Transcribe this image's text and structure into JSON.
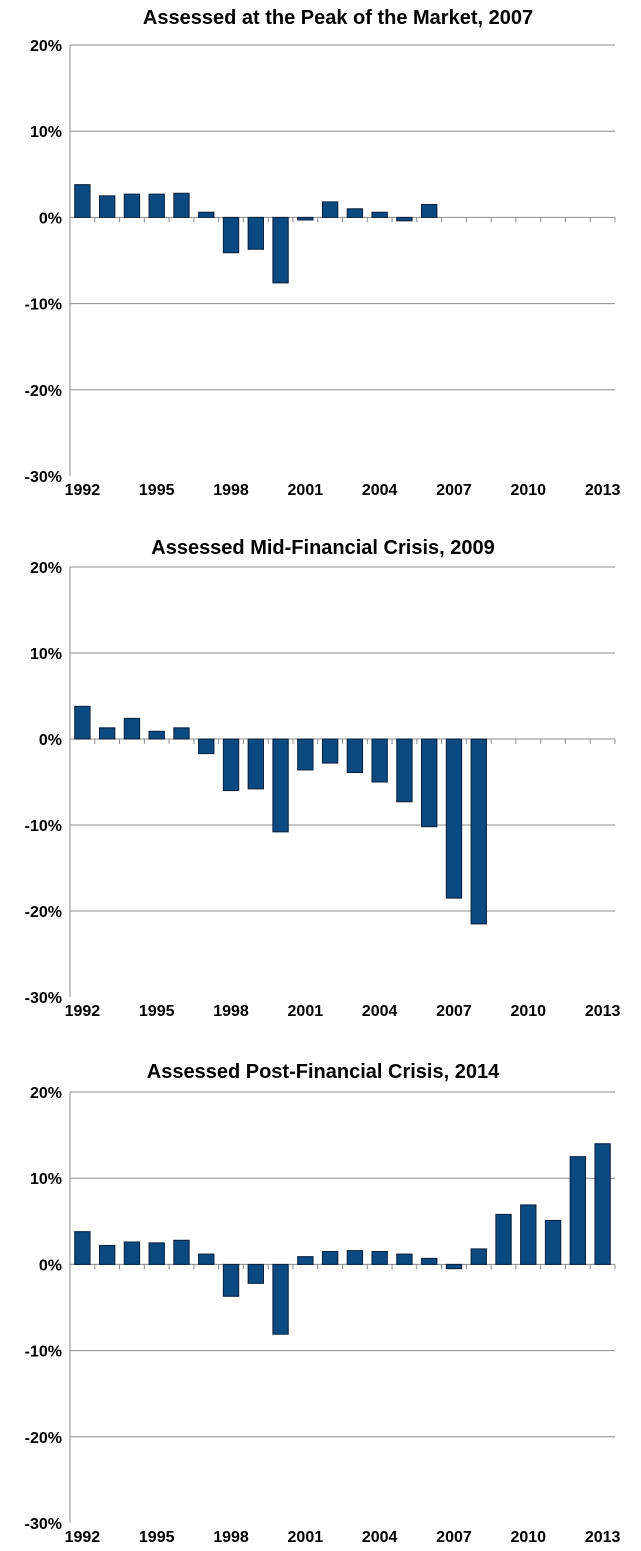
{
  "chart_data": [
    {
      "type": "bar",
      "title": "Assessed at the Peak of the Market, 2007",
      "y_tick_labels": [
        "20%",
        "10%",
        "0%",
        "-10%",
        "-20%",
        "-30%"
      ],
      "x_tick_labels": [
        "1992",
        "1995",
        "1998",
        "2001",
        "2004",
        "2007",
        "2010",
        "2013"
      ],
      "ylim": [
        -30,
        20
      ],
      "grid": true,
      "bar_color": "#0a4a80",
      "categories": [
        1992,
        1993,
        1994,
        1995,
        1996,
        1997,
        1998,
        1999,
        2000,
        2001,
        2002,
        2003,
        2004,
        2005,
        2006,
        2007,
        2008,
        2009,
        2010,
        2011,
        2012,
        2013
      ],
      "values": [
        3.8,
        2.5,
        2.7,
        2.7,
        2.8,
        0.6,
        -4.1,
        -3.7,
        -7.6,
        -0.3,
        1.8,
        1.0,
        0.6,
        -0.4,
        1.5,
        null,
        null,
        null,
        null,
        null,
        null,
        null
      ]
    },
    {
      "type": "bar",
      "title": "Assessed Mid-Financial Crisis, 2009",
      "y_tick_labels": [
        "20%",
        "10%",
        "0%",
        "-10%",
        "-20%",
        "-30%"
      ],
      "x_tick_labels": [
        "1992",
        "1995",
        "1998",
        "2001",
        "2004",
        "2007",
        "2010",
        "2013"
      ],
      "ylim": [
        -30,
        20
      ],
      "grid": true,
      "bar_color": "#0a4a80",
      "categories": [
        1992,
        1993,
        1994,
        1995,
        1996,
        1997,
        1998,
        1999,
        2000,
        2001,
        2002,
        2003,
        2004,
        2005,
        2006,
        2007,
        2008,
        2009,
        2010,
        2011,
        2012,
        2013
      ],
      "values": [
        3.8,
        1.3,
        2.4,
        0.9,
        1.3,
        -1.7,
        -6.0,
        -5.8,
        -10.8,
        -3.6,
        -2.8,
        -3.9,
        -5.0,
        -7.3,
        -10.2,
        -18.5,
        -21.5,
        null,
        null,
        null,
        null,
        null
      ]
    },
    {
      "type": "bar",
      "title": "Assessed Post-Financial Crisis, 2014",
      "y_tick_labels": [
        "20%",
        "10%",
        "0%",
        "-10%",
        "-20%",
        "-30%"
      ],
      "x_tick_labels": [
        "1992",
        "1995",
        "1998",
        "2001",
        "2004",
        "2007",
        "2010",
        "2013"
      ],
      "ylim": [
        -30,
        20
      ],
      "grid": true,
      "bar_color": "#0a4a80",
      "categories": [
        1992,
        1993,
        1994,
        1995,
        1996,
        1997,
        1998,
        1999,
        2000,
        2001,
        2002,
        2003,
        2004,
        2005,
        2006,
        2007,
        2008,
        2009,
        2010,
        2011,
        2012,
        2013
      ],
      "values": [
        3.8,
        2.2,
        2.6,
        2.5,
        2.8,
        1.2,
        -3.7,
        -2.2,
        -8.1,
        0.9,
        1.5,
        1.6,
        1.5,
        1.2,
        0.7,
        -0.5,
        1.8,
        5.8,
        6.9,
        5.1,
        12.5,
        14.0
      ]
    }
  ]
}
